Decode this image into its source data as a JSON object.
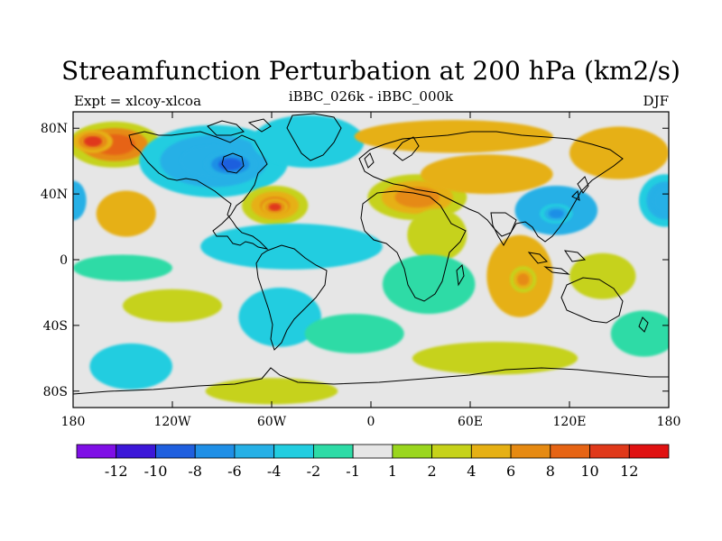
{
  "title": "Streamfunction Perturbation at 200 hPa (km2/s)",
  "left_string": "Expt = xlcoy-xlcoa",
  "center_string": "iBBC_026k - iBBC_000k",
  "right_string": "DJF",
  "map": {
    "projection": "cylindrical-equidistant",
    "lon_range": [
      -180,
      180
    ],
    "lat_range": [
      -90,
      90
    ],
    "lat_ticks": [
      {
        "value": 80,
        "label": "80N"
      },
      {
        "value": 40,
        "label": "40N"
      },
      {
        "value": 0,
        "label": "0"
      },
      {
        "value": -40,
        "label": "40S"
      },
      {
        "value": -80,
        "label": "80S"
      }
    ],
    "lon_ticks": [
      {
        "value": -180,
        "label": "180"
      },
      {
        "value": -120,
        "label": "120W"
      },
      {
        "value": -60,
        "label": "60W"
      },
      {
        "value": 0,
        "label": "0"
      },
      {
        "value": 60,
        "label": "60E"
      },
      {
        "value": 120,
        "label": "120E"
      },
      {
        "value": 180,
        "label": "180"
      }
    ],
    "background_color": "#e6e6e6",
    "features": [
      {
        "name": "north-pacific-positive",
        "lon": -155,
        "lat": 70,
        "rlon": 28,
        "rlat": 14,
        "value": 8
      },
      {
        "name": "north-pacific-positive-core",
        "lon": -168,
        "lat": 72,
        "rlon": 12,
        "rlat": 7,
        "value": 10
      },
      {
        "name": "northeast-pacific-positive",
        "lon": -148,
        "lat": 28,
        "rlon": 18,
        "rlat": 14,
        "value": 5
      },
      {
        "name": "canada-negative",
        "lon": -95,
        "lat": 60,
        "rlon": 45,
        "rlat": 22,
        "value": -6
      },
      {
        "name": "canada-negative-core",
        "lon": -85,
        "lat": 58,
        "rlon": 16,
        "rlat": 8,
        "value": -10
      },
      {
        "name": "greenland-negative",
        "lon": -38,
        "lat": 72,
        "rlon": 34,
        "rlat": 16,
        "value": -4
      },
      {
        "name": "western-atlantic-positive",
        "lon": -58,
        "lat": 33,
        "rlon": 20,
        "rlat": 12,
        "value": 7
      },
      {
        "name": "western-atlantic-positive-core",
        "lon": -58,
        "lat": 32,
        "rlon": 8,
        "rlat": 5,
        "value": 10
      },
      {
        "name": "tropical-atlantic-negative",
        "lon": -48,
        "lat": 8,
        "rlon": 55,
        "rlat": 14,
        "value": -3
      },
      {
        "name": "central-pacific-negative",
        "lon": -150,
        "lat": -5,
        "rlon": 30,
        "rlat": 8,
        "value": -2
      },
      {
        "name": "north-eurasia-positive",
        "lon": 50,
        "lat": 75,
        "rlon": 60,
        "rlat": 10,
        "value": 4
      },
      {
        "name": "mediterranean-positive",
        "lon": 28,
        "lat": 38,
        "rlon": 30,
        "rlat": 14,
        "value": 6
      },
      {
        "name": "central-asia-positive",
        "lon": 70,
        "lat": 52,
        "rlon": 40,
        "rlat": 12,
        "value": 4
      },
      {
        "name": "east-asia-negative",
        "lon": 112,
        "lat": 30,
        "rlon": 25,
        "rlat": 15,
        "value": -5
      },
      {
        "name": "east-asia-negative-core",
        "lon": 112,
        "lat": 28,
        "rlon": 10,
        "rlat": 6,
        "value": -8
      },
      {
        "name": "west-pacific-negative-edge",
        "lon": 178,
        "lat": 36,
        "rlon": 16,
        "rlat": 16,
        "value": -6
      },
      {
        "name": "dateline-west-negative",
        "lon": -180,
        "lat": 36,
        "rlon": 8,
        "rlat": 12,
        "value": -5
      },
      {
        "name": "northwest-pacific-positive",
        "lon": 150,
        "lat": 65,
        "rlon": 30,
        "rlat": 16,
        "value": 5
      },
      {
        "name": "arabian-positive",
        "lon": 40,
        "lat": 15,
        "rlon": 18,
        "rlat": 16,
        "value": 2
      },
      {
        "name": "africa-negative",
        "lon": 35,
        "lat": -15,
        "rlon": 28,
        "rlat": 18,
        "value": -2
      },
      {
        "name": "indian-ocean-positive",
        "lon": 90,
        "lat": -10,
        "rlon": 20,
        "rlat": 25,
        "value": 5
      },
      {
        "name": "indian-ocean-positive-core",
        "lon": 92,
        "lat": -12,
        "rlon": 8,
        "rlat": 8,
        "value": 6
      },
      {
        "name": "south-america-negative",
        "lon": -55,
        "lat": -35,
        "rlon": 25,
        "rlat": 18,
        "value": -3
      },
      {
        "name": "south-atlantic-negative",
        "lon": -10,
        "lat": -45,
        "rlon": 30,
        "rlat": 12,
        "value": -2
      },
      {
        "name": "southeast-pacific-negative",
        "lon": -145,
        "lat": -65,
        "rlon": 25,
        "rlat": 14,
        "value": -3
      },
      {
        "name": "southwest-pacific-negative",
        "lon": 165,
        "lat": -45,
        "rlon": 20,
        "rlat": 14,
        "value": -2
      },
      {
        "name": "southeast-pacific-positive",
        "lon": -120,
        "lat": -28,
        "rlon": 30,
        "rlat": 10,
        "value": 2
      },
      {
        "name": "south-indian-positive",
        "lon": 75,
        "lat": -60,
        "rlon": 50,
        "rlat": 10,
        "value": 2
      },
      {
        "name": "australia-positive",
        "lon": 140,
        "lat": -10,
        "rlon": 20,
        "rlat": 14,
        "value": 2
      },
      {
        "name": "antarctic-positive",
        "lon": -60,
        "lat": -80,
        "rlon": 40,
        "rlat": 8,
        "value": 2
      }
    ]
  },
  "colorbar": {
    "levels": [
      -12,
      -10,
      -8,
      -6,
      -4,
      -2,
      -1,
      1,
      2,
      4,
      6,
      8,
      10,
      12
    ],
    "labels": [
      "-12",
      "-10",
      "-8",
      "-6",
      "-4",
      "-2",
      "-1",
      "1",
      "2",
      "4",
      "6",
      "8",
      "10",
      "12"
    ],
    "colors": [
      "#7f0fe6",
      "#3c17d8",
      "#1f5fde",
      "#1f8fe6",
      "#26b0e6",
      "#22cde0",
      "#2ddba6",
      "#e6e6e6",
      "#9ad61e",
      "#c6d21a",
      "#e6b014",
      "#e68a12",
      "#e66414",
      "#e0391a",
      "#e01111"
    ]
  }
}
